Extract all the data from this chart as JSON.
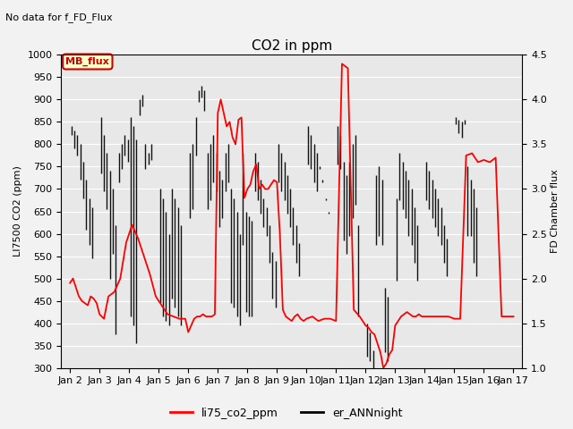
{
  "title": "CO2 in ppm",
  "top_left_text": "No data for f_FD_Flux",
  "legend_label_text": "MB_flux",
  "ylabel_left": "LI7500 CO2 (ppm)",
  "ylabel_right": "FD Chamber flux",
  "ylim_left": [
    300,
    1000
  ],
  "ylim_right": [
    1.0,
    4.5
  ],
  "background_color": "#f2f2f2",
  "axes_bg_color": "#e8e8e8",
  "red_line_color": "#ff0000",
  "black_line_color": "#111111",
  "x_tick_labels": [
    "Jan 2",
    "Jan 3",
    "Jan 4",
    "Jan 5",
    "Jan 6",
    "Jan 7",
    "Jan 8",
    "Jan 9",
    "Jan 10",
    "Jan 11",
    "Jan 12",
    "Jan 13",
    "Jan 14",
    "Jan 15",
    "Jan 16",
    "Jan 17"
  ],
  "red_x": [
    0.0,
    0.1,
    0.2,
    0.3,
    0.4,
    0.5,
    0.6,
    0.7,
    0.8,
    0.9,
    1.0,
    1.15,
    1.3,
    1.5,
    1.7,
    1.9,
    2.1,
    2.3,
    2.5,
    2.7,
    2.9,
    3.1,
    3.3,
    3.5,
    3.7,
    3.9,
    4.0,
    4.1,
    4.2,
    4.3,
    4.4,
    4.5,
    4.6,
    4.7,
    4.8,
    4.9,
    5.0,
    5.1,
    5.2,
    5.3,
    5.4,
    5.5,
    5.6,
    5.7,
    5.8,
    5.9,
    6.0,
    6.1,
    6.2,
    6.3,
    6.4,
    6.5,
    6.6,
    6.7,
    6.8,
    6.9,
    7.0,
    7.1,
    7.2,
    7.3,
    7.4,
    7.5,
    7.6,
    7.7,
    7.8,
    7.9,
    8.0,
    8.2,
    8.4,
    8.6,
    8.8,
    9.0,
    9.2,
    9.4,
    9.6,
    9.8,
    10.0,
    10.1,
    10.2,
    10.3,
    10.4,
    10.5,
    10.6,
    10.7,
    10.8,
    10.9,
    11.0,
    11.1,
    11.2,
    11.3,
    11.4,
    11.5,
    11.6,
    11.7,
    11.8,
    11.9,
    12.0,
    12.2,
    12.4,
    12.6,
    12.8,
    13.0,
    13.2,
    13.4,
    13.6,
    13.8,
    14.0,
    14.2,
    14.4,
    14.6,
    14.8,
    15.0
  ],
  "red_y": [
    490,
    500,
    480,
    460,
    450,
    445,
    440,
    460,
    455,
    445,
    420,
    410,
    460,
    470,
    500,
    580,
    620,
    590,
    550,
    510,
    460,
    440,
    420,
    415,
    410,
    410,
    380,
    395,
    410,
    415,
    415,
    420,
    415,
    415,
    415,
    420,
    870,
    900,
    870,
    840,
    850,
    815,
    800,
    855,
    860,
    680,
    700,
    710,
    740,
    755,
    700,
    710,
    700,
    700,
    710,
    720,
    715,
    600,
    430,
    415,
    410,
    405,
    415,
    420,
    410,
    405,
    410,
    415,
    405,
    410,
    410,
    405,
    980,
    970,
    430,
    415,
    395,
    390,
    380,
    375,
    355,
    335,
    300,
    310,
    330,
    340,
    395,
    405,
    415,
    420,
    425,
    420,
    415,
    415,
    420,
    415,
    415,
    415,
    415,
    415,
    415,
    410,
    410,
    775,
    780,
    760,
    765,
    760,
    770,
    415,
    415,
    415,
    415,
    415,
    415,
    415,
    415
  ],
  "black_vlines": [
    [
      0.05,
      820,
      840
    ],
    [
      0.15,
      790,
      830
    ],
    [
      0.25,
      775,
      820
    ],
    [
      0.35,
      720,
      800
    ],
    [
      0.45,
      680,
      760
    ],
    [
      0.55,
      610,
      720
    ],
    [
      0.65,
      575,
      680
    ],
    [
      0.75,
      545,
      660
    ],
    [
      1.05,
      735,
      860
    ],
    [
      1.15,
      695,
      820
    ],
    [
      1.25,
      655,
      780
    ],
    [
      1.35,
      500,
      740
    ],
    [
      1.45,
      555,
      700
    ],
    [
      1.55,
      375,
      620
    ],
    [
      1.65,
      715,
      780
    ],
    [
      1.75,
      745,
      800
    ],
    [
      1.85,
      775,
      820
    ],
    [
      1.95,
      760,
      810
    ],
    [
      2.05,
      415,
      860
    ],
    [
      2.15,
      395,
      840
    ],
    [
      2.25,
      355,
      810
    ],
    [
      2.35,
      865,
      900
    ],
    [
      2.45,
      885,
      910
    ],
    [
      2.55,
      745,
      800
    ],
    [
      2.65,
      755,
      780
    ],
    [
      2.75,
      765,
      800
    ],
    [
      3.05,
      445,
      700
    ],
    [
      3.15,
      415,
      680
    ],
    [
      3.25,
      405,
      650
    ],
    [
      3.35,
      395,
      600
    ],
    [
      3.45,
      455,
      700
    ],
    [
      3.55,
      435,
      680
    ],
    [
      3.65,
      415,
      660
    ],
    [
      3.75,
      395,
      620
    ],
    [
      4.05,
      635,
      780
    ],
    [
      4.15,
      655,
      800
    ],
    [
      4.25,
      775,
      860
    ],
    [
      4.35,
      895,
      920
    ],
    [
      4.45,
      905,
      930
    ],
    [
      4.55,
      875,
      920
    ],
    [
      4.65,
      655,
      780
    ],
    [
      4.75,
      675,
      800
    ],
    [
      4.85,
      715,
      820
    ],
    [
      4.95,
      695,
      780
    ],
    [
      5.05,
      615,
      740
    ],
    [
      5.15,
      635,
      720
    ],
    [
      5.25,
      695,
      780
    ],
    [
      5.35,
      715,
      800
    ],
    [
      5.45,
      445,
      700
    ],
    [
      5.55,
      435,
      680
    ],
    [
      5.65,
      415,
      650
    ],
    [
      5.75,
      395,
      600
    ],
    [
      5.85,
      575,
      780
    ],
    [
      5.95,
      425,
      650
    ],
    [
      6.05,
      415,
      640
    ],
    [
      6.15,
      415,
      630
    ],
    [
      6.25,
      695,
      780
    ],
    [
      6.35,
      675,
      760
    ],
    [
      6.45,
      645,
      720
    ],
    [
      6.55,
      615,
      680
    ],
    [
      6.65,
      595,
      660
    ],
    [
      6.75,
      535,
      620
    ],
    [
      6.85,
      455,
      560
    ],
    [
      6.95,
      435,
      540
    ],
    [
      7.05,
      715,
      800
    ],
    [
      7.15,
      695,
      780
    ],
    [
      7.25,
      675,
      760
    ],
    [
      7.35,
      645,
      730
    ],
    [
      7.45,
      615,
      700
    ],
    [
      7.55,
      575,
      660
    ],
    [
      7.65,
      535,
      620
    ],
    [
      7.75,
      505,
      580
    ],
    [
      8.05,
      755,
      840
    ],
    [
      8.15,
      745,
      820
    ],
    [
      8.25,
      715,
      800
    ],
    [
      8.35,
      695,
      780
    ],
    [
      8.45,
      745,
      750
    ],
    [
      8.55,
      715,
      720
    ],
    [
      8.65,
      675,
      680
    ],
    [
      8.75,
      645,
      650
    ],
    [
      9.05,
      755,
      840
    ],
    [
      9.15,
      745,
      820
    ],
    [
      9.25,
      585,
      760
    ],
    [
      9.35,
      555,
      730
    ],
    [
      9.45,
      595,
      760
    ],
    [
      9.55,
      635,
      800
    ],
    [
      9.65,
      665,
      820
    ],
    [
      9.75,
      415,
      620
    ],
    [
      10.05,
      325,
      400
    ],
    [
      10.15,
      315,
      380
    ],
    [
      10.25,
      295,
      340
    ],
    [
      10.35,
      575,
      730
    ],
    [
      10.45,
      595,
      750
    ],
    [
      10.55,
      575,
      720
    ],
    [
      10.65,
      335,
      480
    ],
    [
      10.75,
      315,
      460
    ],
    [
      11.05,
      495,
      680
    ],
    [
      11.15,
      675,
      780
    ],
    [
      11.25,
      655,
      760
    ],
    [
      11.35,
      635,
      740
    ],
    [
      11.45,
      595,
      720
    ],
    [
      11.55,
      575,
      700
    ],
    [
      11.65,
      535,
      660
    ],
    [
      11.75,
      495,
      620
    ],
    [
      12.05,
      675,
      760
    ],
    [
      12.15,
      655,
      740
    ],
    [
      12.25,
      635,
      720
    ],
    [
      12.35,
      615,
      700
    ],
    [
      12.45,
      595,
      680
    ],
    [
      12.55,
      575,
      660
    ],
    [
      12.65,
      535,
      620
    ],
    [
      12.75,
      505,
      590
    ],
    [
      13.05,
      845,
      860
    ],
    [
      13.15,
      825,
      855
    ],
    [
      13.25,
      815,
      850
    ],
    [
      13.35,
      845,
      855
    ],
    [
      13.45,
      595,
      750
    ],
    [
      13.55,
      595,
      720
    ],
    [
      13.65,
      535,
      700
    ],
    [
      13.75,
      505,
      660
    ]
  ]
}
